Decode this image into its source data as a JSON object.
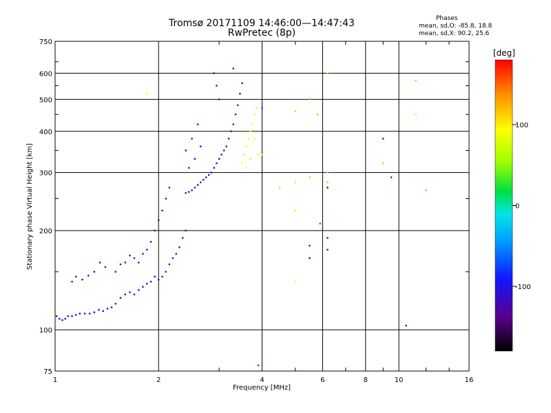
{
  "chart_data": {
    "type": "scatter",
    "title": "Tromsø 20171109 14:46:00—14:47:43",
    "subtitle": "RwPretec (8p)",
    "xlabel": "Frequency [MHz]",
    "ylabel": "Stationary phase Virtual Height [km]",
    "x_scale": "log",
    "y_scale": "log",
    "xlim": [
      1,
      16
    ],
    "ylim": [
      75,
      750
    ],
    "x_ticks": [
      1,
      2,
      4,
      6,
      8,
      10,
      16
    ],
    "x_tick_labels": [
      "1",
      "2",
      "4",
      "6",
      "8",
      "10",
      "16"
    ],
    "y_ticks": [
      75,
      100,
      200,
      300,
      400,
      500,
      600,
      750
    ],
    "y_tick_labels": [
      "75",
      "100",
      "200",
      "300",
      "400",
      "500",
      "600",
      "750"
    ],
    "grid": true,
    "colorbar": {
      "label": "[deg]",
      "range": [
        -180,
        180
      ],
      "ticks": [
        100,
        0,
        -100
      ],
      "tick_labels": [
        "100",
        "0",
        "-100"
      ]
    },
    "stats": {
      "title": "Phases",
      "line1": "mean, sd,O: -85.8, 18.8",
      "line2": "mean, sd,X: 90.2, 25.6"
    },
    "series": [
      {
        "trace": "low-frequency E/F1 region",
        "points": [
          [
            1.01,
            110,
            -105
          ],
          [
            1.03,
            108,
            -95
          ],
          [
            1.05,
            107,
            -90
          ],
          [
            1.07,
            108,
            -100
          ],
          [
            1.09,
            110,
            -112
          ],
          [
            1.12,
            110,
            -108
          ],
          [
            1.15,
            111,
            -110
          ],
          [
            1.18,
            112,
            -115
          ],
          [
            1.22,
            112,
            -110
          ],
          [
            1.26,
            112,
            -118
          ],
          [
            1.3,
            113,
            -112
          ],
          [
            1.34,
            115,
            -115
          ],
          [
            1.38,
            114,
            -110
          ],
          [
            1.42,
            116,
            -108
          ],
          [
            1.46,
            117,
            -112
          ],
          [
            1.5,
            120,
            -105
          ],
          [
            1.55,
            125,
            -110
          ],
          [
            1.6,
            128,
            -100
          ],
          [
            1.65,
            130,
            -95
          ],
          [
            1.7,
            128,
            -108
          ],
          [
            1.75,
            132,
            -112
          ],
          [
            1.8,
            135,
            -105
          ],
          [
            1.85,
            138,
            -98
          ],
          [
            1.9,
            140,
            -110
          ],
          [
            1.95,
            145,
            -118
          ],
          [
            2.0,
            142,
            -115
          ],
          [
            2.05,
            145,
            -100
          ],
          [
            2.1,
            150,
            -112
          ],
          [
            2.15,
            158,
            -105
          ],
          [
            2.2,
            165,
            -110
          ],
          [
            2.25,
            170,
            -100
          ],
          [
            2.3,
            178,
            -115
          ],
          [
            2.35,
            190,
            -110
          ],
          [
            2.4,
            200,
            -105
          ]
        ]
      },
      {
        "trace": "low-frequency upper branch",
        "points": [
          [
            1.12,
            140,
            -110
          ],
          [
            1.15,
            145,
            -100
          ],
          [
            1.2,
            142,
            -95
          ],
          [
            1.25,
            146,
            -108
          ],
          [
            1.3,
            150,
            -112
          ],
          [
            1.35,
            160,
            -105
          ],
          [
            1.4,
            155,
            -110
          ],
          [
            1.5,
            150,
            -100
          ],
          [
            1.55,
            158,
            -115
          ],
          [
            1.6,
            160,
            -108
          ],
          [
            1.65,
            168,
            -112
          ],
          [
            1.7,
            165,
            -105
          ],
          [
            1.75,
            160,
            -100
          ],
          [
            1.8,
            170,
            -110
          ],
          [
            1.85,
            175,
            -95
          ],
          [
            1.9,
            185,
            -112
          ],
          [
            1.95,
            200,
            -118
          ],
          [
            2.0,
            215,
            -110
          ],
          [
            2.05,
            230,
            -105
          ],
          [
            2.1,
            250,
            -100
          ],
          [
            2.15,
            270,
            -112
          ]
        ]
      },
      {
        "trace": "F2 region O-mode",
        "points": [
          [
            2.4,
            260,
            -110
          ],
          [
            2.45,
            262,
            -115
          ],
          [
            2.5,
            265,
            -108
          ],
          [
            2.55,
            270,
            -112
          ],
          [
            2.6,
            275,
            -118
          ],
          [
            2.65,
            280,
            -120
          ],
          [
            2.7,
            285,
            -115
          ],
          [
            2.75,
            290,
            -112
          ],
          [
            2.8,
            295,
            -125
          ],
          [
            2.85,
            300,
            -120
          ],
          [
            2.9,
            310,
            -118
          ],
          [
            2.95,
            320,
            -130
          ],
          [
            3.0,
            330,
            -125
          ],
          [
            3.05,
            340,
            -128
          ],
          [
            3.1,
            350,
            -132
          ],
          [
            3.15,
            360,
            -135
          ],
          [
            3.2,
            380,
            -130
          ],
          [
            3.25,
            400,
            -125
          ],
          [
            3.3,
            420,
            -128
          ],
          [
            3.35,
            450,
            -135
          ],
          [
            3.4,
            480,
            -130
          ],
          [
            3.45,
            520,
            -128
          ],
          [
            3.5,
            560,
            -125
          ],
          [
            3.3,
            620,
            -135
          ],
          [
            2.9,
            600,
            -115
          ],
          [
            2.95,
            550,
            -110
          ],
          [
            3.0,
            500,
            -118
          ],
          [
            2.6,
            420,
            -105
          ],
          [
            2.5,
            380,
            -100
          ],
          [
            2.4,
            350,
            -95
          ],
          [
            2.45,
            310,
            -100
          ],
          [
            2.55,
            330,
            -98
          ],
          [
            2.65,
            360,
            -105
          ]
        ]
      },
      {
        "trace": "F2 region X-mode",
        "points": [
          [
            3.5,
            320,
            95
          ],
          [
            3.55,
            340,
            100
          ],
          [
            3.6,
            360,
            90
          ],
          [
            3.65,
            380,
            85
          ],
          [
            3.7,
            400,
            88
          ],
          [
            3.75,
            420,
            92
          ],
          [
            3.8,
            450,
            98
          ],
          [
            3.85,
            470,
            85
          ],
          [
            3.7,
            330,
            90
          ],
          [
            3.6,
            310,
            95
          ],
          [
            3.9,
            340,
            100
          ],
          [
            3.8,
            380,
            92
          ]
        ]
      },
      {
        "trace": "high-frequency sparse",
        "points": [
          [
            1.85,
            520,
            95
          ],
          [
            4.5,
            270,
            110
          ],
          [
            5.0,
            280,
            105
          ],
          [
            5.0,
            460,
            112
          ],
          [
            5.5,
            500,
            130
          ],
          [
            5.5,
            290,
            115
          ],
          [
            5.8,
            450,
            120
          ],
          [
            5.0,
            230,
            100
          ],
          [
            5.5,
            165,
            -140
          ],
          [
            5.5,
            180,
            -120
          ],
          [
            5.0,
            140,
            95
          ],
          [
            6.2,
            300,
            110
          ],
          [
            6.2,
            280,
            125
          ],
          [
            6.2,
            270,
            -150
          ],
          [
            6.2,
            190,
            -130
          ],
          [
            6.2,
            175,
            -110
          ],
          [
            6.2,
            600,
            110
          ],
          [
            5.9,
            210,
            -60
          ],
          [
            9.0,
            380,
            -110
          ],
          [
            9.0,
            320,
            120
          ],
          [
            9.5,
            290,
            -80
          ],
          [
            10.5,
            103,
            -110
          ],
          [
            11.2,
            570,
            115
          ],
          [
            11.2,
            450,
            100
          ],
          [
            12.0,
            265,
            130
          ],
          [
            4.0,
            340,
            95
          ],
          [
            4.0,
            470,
            -70
          ],
          [
            3.9,
            78,
            -70
          ]
        ]
      }
    ]
  }
}
